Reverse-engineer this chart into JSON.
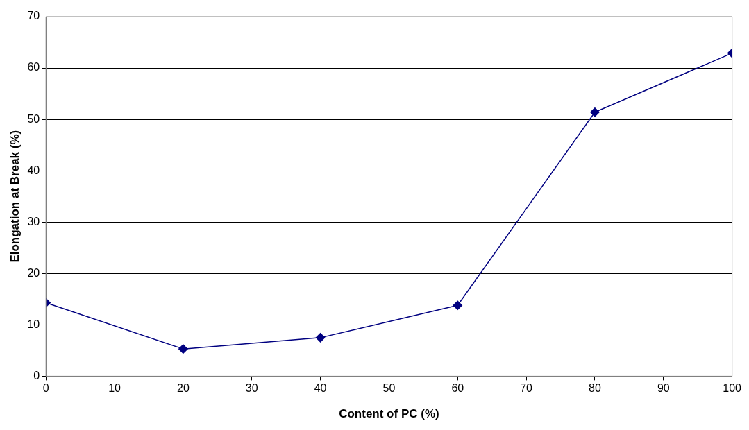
{
  "chart_data": {
    "type": "line",
    "xlabel": "Content of PC (%)",
    "ylabel": "Elongation at Break (%)",
    "x": [
      0,
      20,
      40,
      60,
      80,
      100
    ],
    "series": [
      {
        "color": "#000080",
        "values": [
          14.3,
          5.3,
          7.5,
          13.8,
          51.4,
          62.9
        ]
      }
    ],
    "xlim": [
      0,
      100
    ],
    "xticks": [
      0,
      10,
      20,
      30,
      40,
      50,
      60,
      70,
      80,
      90,
      100
    ],
    "ylim": [
      0,
      70
    ],
    "yticks": [
      0,
      10,
      20,
      30,
      40,
      50,
      60,
      70
    ],
    "grid": "y",
    "legend": false,
    "marker": "diamond",
    "line_style": "solid"
  }
}
